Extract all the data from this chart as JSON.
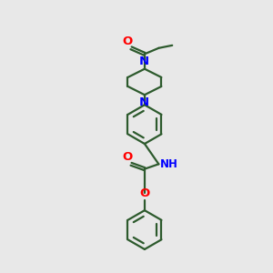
{
  "bg_color": "#e8e8e8",
  "bond_color": "#2d5a2d",
  "N_color": "#0000ff",
  "O_color": "#ff0000",
  "line_width": 1.6,
  "font_size": 8.5,
  "fig_size": [
    3.0,
    3.0
  ],
  "dpi": 100,
  "xlim": [
    0,
    10
  ],
  "ylim": [
    0,
    10
  ]
}
